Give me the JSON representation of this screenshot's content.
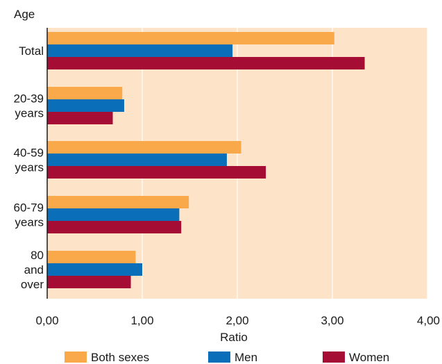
{
  "chart_data": {
    "type": "bar",
    "orientation": "horizontal",
    "ylabel": "Age",
    "xlabel": "Ratio",
    "categories": [
      [
        "Total"
      ],
      [
        "20-39",
        "years"
      ],
      [
        "40-59",
        "years"
      ],
      [
        "60-79",
        "years"
      ],
      [
        "80",
        "and",
        "over"
      ]
    ],
    "series": [
      {
        "name": "Both sexes",
        "color": "#f9a84a",
        "values": [
          3.02,
          0.79,
          2.04,
          1.49,
          0.93
        ]
      },
      {
        "name": "Men",
        "color": "#0a6eb8",
        "values": [
          1.95,
          0.81,
          1.89,
          1.39,
          1.0
        ]
      },
      {
        "name": "Women",
        "color": "#a50d35",
        "values": [
          3.34,
          0.69,
          2.3,
          1.41,
          0.88
        ]
      }
    ],
    "xlim": [
      0,
      4
    ],
    "xticks": [
      "0,00",
      "1,00",
      "2,00",
      "3,00",
      "4,00"
    ],
    "grid": true,
    "background_color": "#fde3c8",
    "grid_color": "#ffffff",
    "legend_position": "bottom"
  }
}
